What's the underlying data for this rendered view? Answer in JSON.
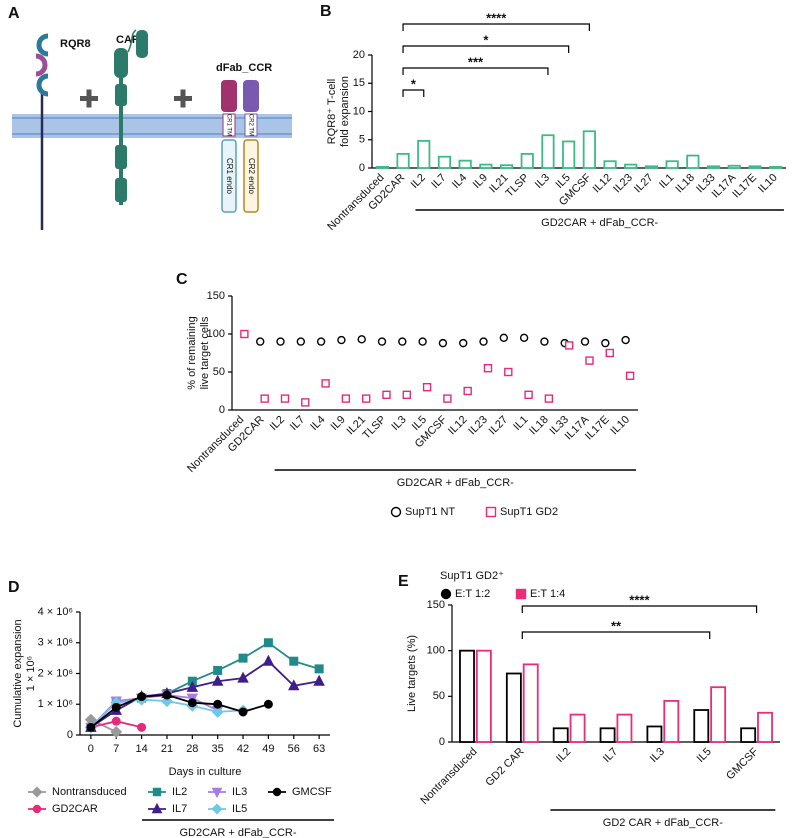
{
  "diagram": {
    "panel": "A",
    "labels": {
      "rqr8": "RQR8",
      "car": "CAR",
      "dfab": "dFab_CCR",
      "cr1_tm": "CR1 TM",
      "cr2_tm": "CR2 TM",
      "cr1_endo": "CR1 endo",
      "cr2_endo": "CR2 endo"
    }
  },
  "chart_data": [
    {
      "panel": "B",
      "type": "bar",
      "ylabel": [
        "RQR8⁺ T-cell",
        "fold expansion"
      ],
      "categories": [
        "Nontransduced",
        "GD2CAR",
        "IL2",
        "IL7",
        "IL4",
        "IL9",
        "IL21",
        "TLSP",
        "IL3",
        "IL5",
        "GMCSF",
        "IL12",
        "IL23",
        "IL27",
        "IL1",
        "IL18",
        "IL33",
        "IL17A",
        "IL17E",
        "IL10"
      ],
      "values": [
        0.2,
        2.5,
        4.8,
        2,
        1.3,
        0.6,
        0.5,
        2.5,
        5.8,
        4.7,
        6.5,
        1.2,
        0.6,
        0.3,
        1.2,
        2.2,
        0.3,
        0.4,
        0.3,
        0.2
      ],
      "color": "#3dbb85",
      "ylim": [
        0,
        20
      ],
      "yticks": [
        0,
        5,
        10,
        15,
        20
      ],
      "brackets": [
        {
          "label": "*",
          "between": [
            "GD2CAR",
            "IL2"
          ]
        },
        {
          "label": "***",
          "between": [
            "GD2CAR",
            "IL3"
          ]
        },
        {
          "label": "*",
          "between": [
            "GD2CAR",
            "IL5"
          ]
        },
        {
          "label": "****",
          "between": [
            "GD2CAR",
            "GMCSF"
          ]
        }
      ],
      "group": {
        "label": "GD2CAR + dFab_CCR-",
        "from": "IL2",
        "to": "IL10"
      }
    },
    {
      "panel": "C",
      "type": "dot",
      "ylabel": [
        "% of remaining",
        "live target cells"
      ],
      "categories": [
        "Nontransduced",
        "GD2CAR",
        "IL2",
        "IL7",
        "IL4",
        "IL9",
        "IL21",
        "TLSP",
        "IL3",
        "IL5",
        "GMCSF",
        "IL12",
        "IL23",
        "IL27",
        "IL1",
        "IL18",
        "IL33",
        "IL17A",
        "IL17E",
        "IL10"
      ],
      "series": [
        {
          "name": "SupT1 NT",
          "color": "#000000",
          "marker": "circle",
          "values": [
            null,
            90,
            90,
            90,
            90,
            92,
            93,
            90,
            90,
            90,
            88,
            88,
            90,
            95,
            95,
            90,
            88,
            90,
            88,
            92
          ]
        },
        {
          "name": "SupT1 GD2",
          "color": "#e8297a",
          "marker": "square",
          "values": [
            100,
            15,
            15,
            10,
            35,
            15,
            15,
            20,
            20,
            30,
            15,
            25,
            55,
            50,
            20,
            15,
            85,
            65,
            75,
            45
          ]
        }
      ],
      "ylim": [
        0,
        150
      ],
      "yticks": [
        0,
        50,
        100,
        150
      ],
      "legend": "bottom",
      "group": {
        "label": "GD2CAR + dFab_CCR-",
        "from": "IL2",
        "to": "IL10"
      }
    },
    {
      "panel": "D",
      "type": "line",
      "ylabel": [
        "Cumulative expansion",
        "1 × 10⁶"
      ],
      "xlabel": "Days in culture",
      "x": [
        0,
        7,
        14,
        21,
        28,
        35,
        42,
        49,
        56,
        63
      ],
      "xlim": [
        -3,
        66
      ],
      "xticks": [
        0,
        7,
        14,
        21,
        28,
        35,
        42,
        49,
        56,
        63
      ],
      "ylim": [
        0,
        4000000
      ],
      "yticks": [
        0,
        {
          "value": 1000000,
          "label": "1 × 10⁶"
        },
        {
          "value": 2000000,
          "label": "2 × 10⁶"
        },
        {
          "value": 3000000,
          "label": "3 × 10⁶"
        },
        {
          "value": 4000000,
          "label": "4 × 10⁶"
        }
      ],
      "series": [
        {
          "name": "Nontransduced",
          "color": "#9a9a9a",
          "marker": "diamond",
          "values": [
            500000,
            100000,
            null,
            null,
            null,
            null,
            null,
            null,
            null,
            null
          ]
        },
        {
          "name": "GD2CAR",
          "color": "#e8297a",
          "marker": "circle",
          "values": [
            250000,
            450000,
            250000,
            null,
            null,
            null,
            null,
            null,
            null,
            null
          ]
        },
        {
          "name": "IL2",
          "color": "#218a8a",
          "marker": "square",
          "values": [
            250000,
            1100000,
            1200000,
            1350000,
            1750000,
            2100000,
            2500000,
            3000000,
            2400000,
            2150000
          ]
        },
        {
          "name": "IL7",
          "color": "#3f1d8a",
          "marker": "triangle",
          "values": [
            250000,
            800000,
            1250000,
            1350000,
            1550000,
            1750000,
            1850000,
            2400000,
            1600000,
            1750000
          ]
        },
        {
          "name": "IL3",
          "color": "#a77de0",
          "marker": "triangle-down",
          "values": [
            250000,
            1100000,
            1200000,
            1300000,
            1200000,
            800000,
            null,
            null,
            null,
            null
          ]
        },
        {
          "name": "IL5",
          "color": "#6fc8ea",
          "marker": "diamond",
          "values": [
            250000,
            1050000,
            1150000,
            1100000,
            950000,
            750000,
            800000,
            null,
            null,
            null
          ]
        },
        {
          "name": "GMCSF",
          "color": "#000000",
          "marker": "circle",
          "values": [
            250000,
            900000,
            1250000,
            1300000,
            1050000,
            1000000,
            750000,
            1000000,
            null,
            null
          ]
        }
      ],
      "legend": "bottom",
      "group": {
        "label": "GD2CAR + dFab_CCR-",
        "from": "IL2",
        "to": "GMCSF"
      }
    },
    {
      "panel": "E",
      "type": "bar",
      "ylabel": "Live targets (%)",
      "categories": [
        "Nontransduced",
        "GD2 CAR",
        "IL2",
        "IL7",
        "IL3",
        "IL5",
        "GMCSF"
      ],
      "series": [
        {
          "name": "E:T 1:2",
          "color": "#000000",
          "marker": "circle",
          "values": [
            100,
            75,
            15,
            15,
            17,
            35,
            15
          ]
        },
        {
          "name": "E:T 1:4",
          "color": "#ee2a7b",
          "marker": "square",
          "values": [
            100,
            85,
            30,
            30,
            45,
            60,
            32
          ]
        }
      ],
      "legend_title": "SupT1 GD2⁺",
      "legend": "top-left",
      "ylim": [
        0,
        150
      ],
      "yticks": [
        0,
        50,
        100,
        150
      ],
      "brackets": [
        {
          "label": "**",
          "between": [
            "GD2 CAR",
            "IL5"
          ]
        },
        {
          "label": "****",
          "between": [
            "GD2 CAR",
            "GMCSF"
          ]
        }
      ],
      "group": {
        "label": "GD2 CAR + dFab_CCR-",
        "from": "IL2",
        "to": "GMCSF"
      }
    }
  ]
}
